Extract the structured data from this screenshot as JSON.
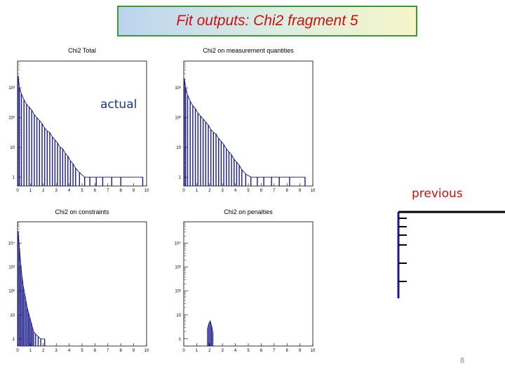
{
  "slide": {
    "title": "Fit outputs: Chi2 fragment 5",
    "label_actual": "actual",
    "label_previous": "previous",
    "page_number": "8",
    "title_color": "#cc1010",
    "histogram_color": "#1a1a8c"
  },
  "chart_data": [
    {
      "type": "histogram",
      "title": "Chi2 Total",
      "x_ticks": [
        "0",
        "1",
        "2",
        "3",
        "4",
        "5",
        "6",
        "7",
        "8",
        "9",
        "10"
      ],
      "xlim": [
        0,
        10
      ],
      "y_scale": "log",
      "y_ticks": [
        "1",
        "10",
        "10²",
        "10³"
      ],
      "ylim_log10": [
        -0.3,
        3.9
      ],
      "points": [
        [
          0.05,
          3.4
        ],
        [
          0.15,
          3.0
        ],
        [
          0.3,
          2.8
        ],
        [
          0.5,
          2.6
        ],
        [
          0.7,
          2.45
        ],
        [
          0.9,
          2.35
        ],
        [
          1.1,
          2.25
        ],
        [
          1.3,
          2.1
        ],
        [
          1.5,
          2.0
        ],
        [
          1.7,
          1.9
        ],
        [
          1.9,
          1.8
        ],
        [
          2.1,
          1.65
        ],
        [
          2.3,
          1.55
        ],
        [
          2.5,
          1.5
        ],
        [
          2.7,
          1.35
        ],
        [
          2.9,
          1.25
        ],
        [
          3.1,
          1.15
        ],
        [
          3.3,
          1.0
        ],
        [
          3.5,
          0.95
        ],
        [
          3.7,
          0.8
        ],
        [
          3.9,
          0.7
        ],
        [
          4.1,
          0.55
        ],
        [
          4.3,
          0.45
        ],
        [
          4.5,
          0.3
        ],
        [
          4.8,
          0.15
        ],
        [
          5.2,
          0.0
        ],
        [
          5.6,
          0.0
        ],
        [
          6.1,
          0.0
        ],
        [
          6.6,
          0.0
        ],
        [
          7.3,
          0.0
        ],
        [
          8.0,
          0.0
        ],
        [
          9.7,
          0.0
        ]
      ]
    },
    {
      "type": "histogram",
      "title": "Chi2 on measurement quantities",
      "x_ticks": [
        "0",
        "1",
        "2",
        "3",
        "4",
        "5",
        "6",
        "7",
        "8",
        "9",
        "10"
      ],
      "xlim": [
        0,
        10
      ],
      "y_scale": "log",
      "y_ticks": [
        "1",
        "10",
        "10²",
        "10³"
      ],
      "ylim_log10": [
        -0.3,
        3.9
      ],
      "points": [
        [
          0.05,
          3.3
        ],
        [
          0.15,
          3.0
        ],
        [
          0.3,
          2.75
        ],
        [
          0.5,
          2.55
        ],
        [
          0.7,
          2.4
        ],
        [
          0.9,
          2.3
        ],
        [
          1.1,
          2.15
        ],
        [
          1.3,
          2.05
        ],
        [
          1.5,
          1.95
        ],
        [
          1.7,
          1.85
        ],
        [
          1.9,
          1.75
        ],
        [
          2.1,
          1.6
        ],
        [
          2.3,
          1.5
        ],
        [
          2.5,
          1.45
        ],
        [
          2.7,
          1.3
        ],
        [
          2.9,
          1.2
        ],
        [
          3.1,
          1.1
        ],
        [
          3.3,
          0.95
        ],
        [
          3.5,
          0.85
        ],
        [
          3.7,
          0.75
        ],
        [
          3.9,
          0.6
        ],
        [
          4.1,
          0.5
        ],
        [
          4.3,
          0.4
        ],
        [
          4.5,
          0.25
        ],
        [
          4.8,
          0.1
        ],
        [
          5.2,
          0.0
        ],
        [
          5.7,
          0.0
        ],
        [
          6.2,
          0.0
        ],
        [
          6.8,
          0.0
        ],
        [
          7.4,
          0.0
        ],
        [
          8.2,
          0.0
        ],
        [
          9.4,
          0.0
        ]
      ]
    },
    {
      "type": "histogram",
      "title": "Chi2 on constraints",
      "x_ticks": [
        "0",
        "1",
        "2",
        "3",
        "4",
        "5",
        "6",
        "7",
        "8",
        "9",
        "10"
      ],
      "xlim": [
        0,
        10
      ],
      "y_scale": "log",
      "y_ticks": [
        "1",
        "10",
        "10²",
        "10³",
        "10⁴"
      ],
      "ylim_log10": [
        -0.3,
        4.9
      ],
      "points": [
        [
          0.05,
          4.5
        ],
        [
          0.15,
          3.8
        ],
        [
          0.25,
          3.1
        ],
        [
          0.35,
          2.6
        ],
        [
          0.45,
          2.2
        ],
        [
          0.55,
          1.9
        ],
        [
          0.65,
          1.6
        ],
        [
          0.75,
          1.3
        ],
        [
          0.85,
          1.1
        ],
        [
          0.95,
          0.9
        ],
        [
          1.05,
          0.7
        ],
        [
          1.15,
          0.5
        ],
        [
          1.25,
          0.3
        ],
        [
          1.4,
          0.2
        ],
        [
          1.6,
          0.1
        ],
        [
          1.8,
          0.0
        ],
        [
          2.1,
          0.0
        ]
      ]
    },
    {
      "type": "histogram",
      "title": "Chi2 on penalties",
      "x_ticks": [
        "0",
        "1",
        "2",
        "3",
        "4",
        "5",
        "6",
        "7",
        "8",
        "9",
        "10"
      ],
      "xlim": [
        0,
        10
      ],
      "y_scale": "log",
      "y_ticks": [
        "1",
        "10",
        "10²",
        "10³",
        "10⁴"
      ],
      "ylim_log10": [
        -0.3,
        4.9
      ],
      "points": [
        [
          1.85,
          0.45
        ],
        [
          1.95,
          0.65
        ],
        [
          2.05,
          0.75
        ],
        [
          2.15,
          0.55
        ],
        [
          2.25,
          0.3
        ]
      ]
    }
  ]
}
